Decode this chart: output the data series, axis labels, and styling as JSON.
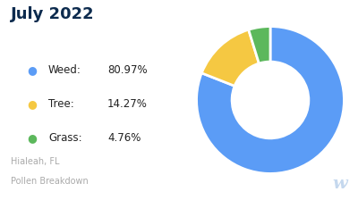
{
  "title": "July 2022",
  "title_color": "#0d2b4e",
  "labels": [
    "Weed",
    "Tree",
    "Grass"
  ],
  "values": [
    80.97,
    14.27,
    4.76
  ],
  "colors": [
    "#5b9cf6",
    "#f5c842",
    "#5cb85c"
  ],
  "legend_names": [
    "Weed:",
    "Tree:",
    "Grass:"
  ],
  "legend_pcts": [
    "80.97%",
    "14.27%",
    "4.76%"
  ],
  "footer_line1": "Hialeah, FL",
  "footer_line2": "Pollen Breakdown",
  "footer_color": "#aaaaaa",
  "watermark_color": "#c5d8ee",
  "background_color": "#ffffff"
}
